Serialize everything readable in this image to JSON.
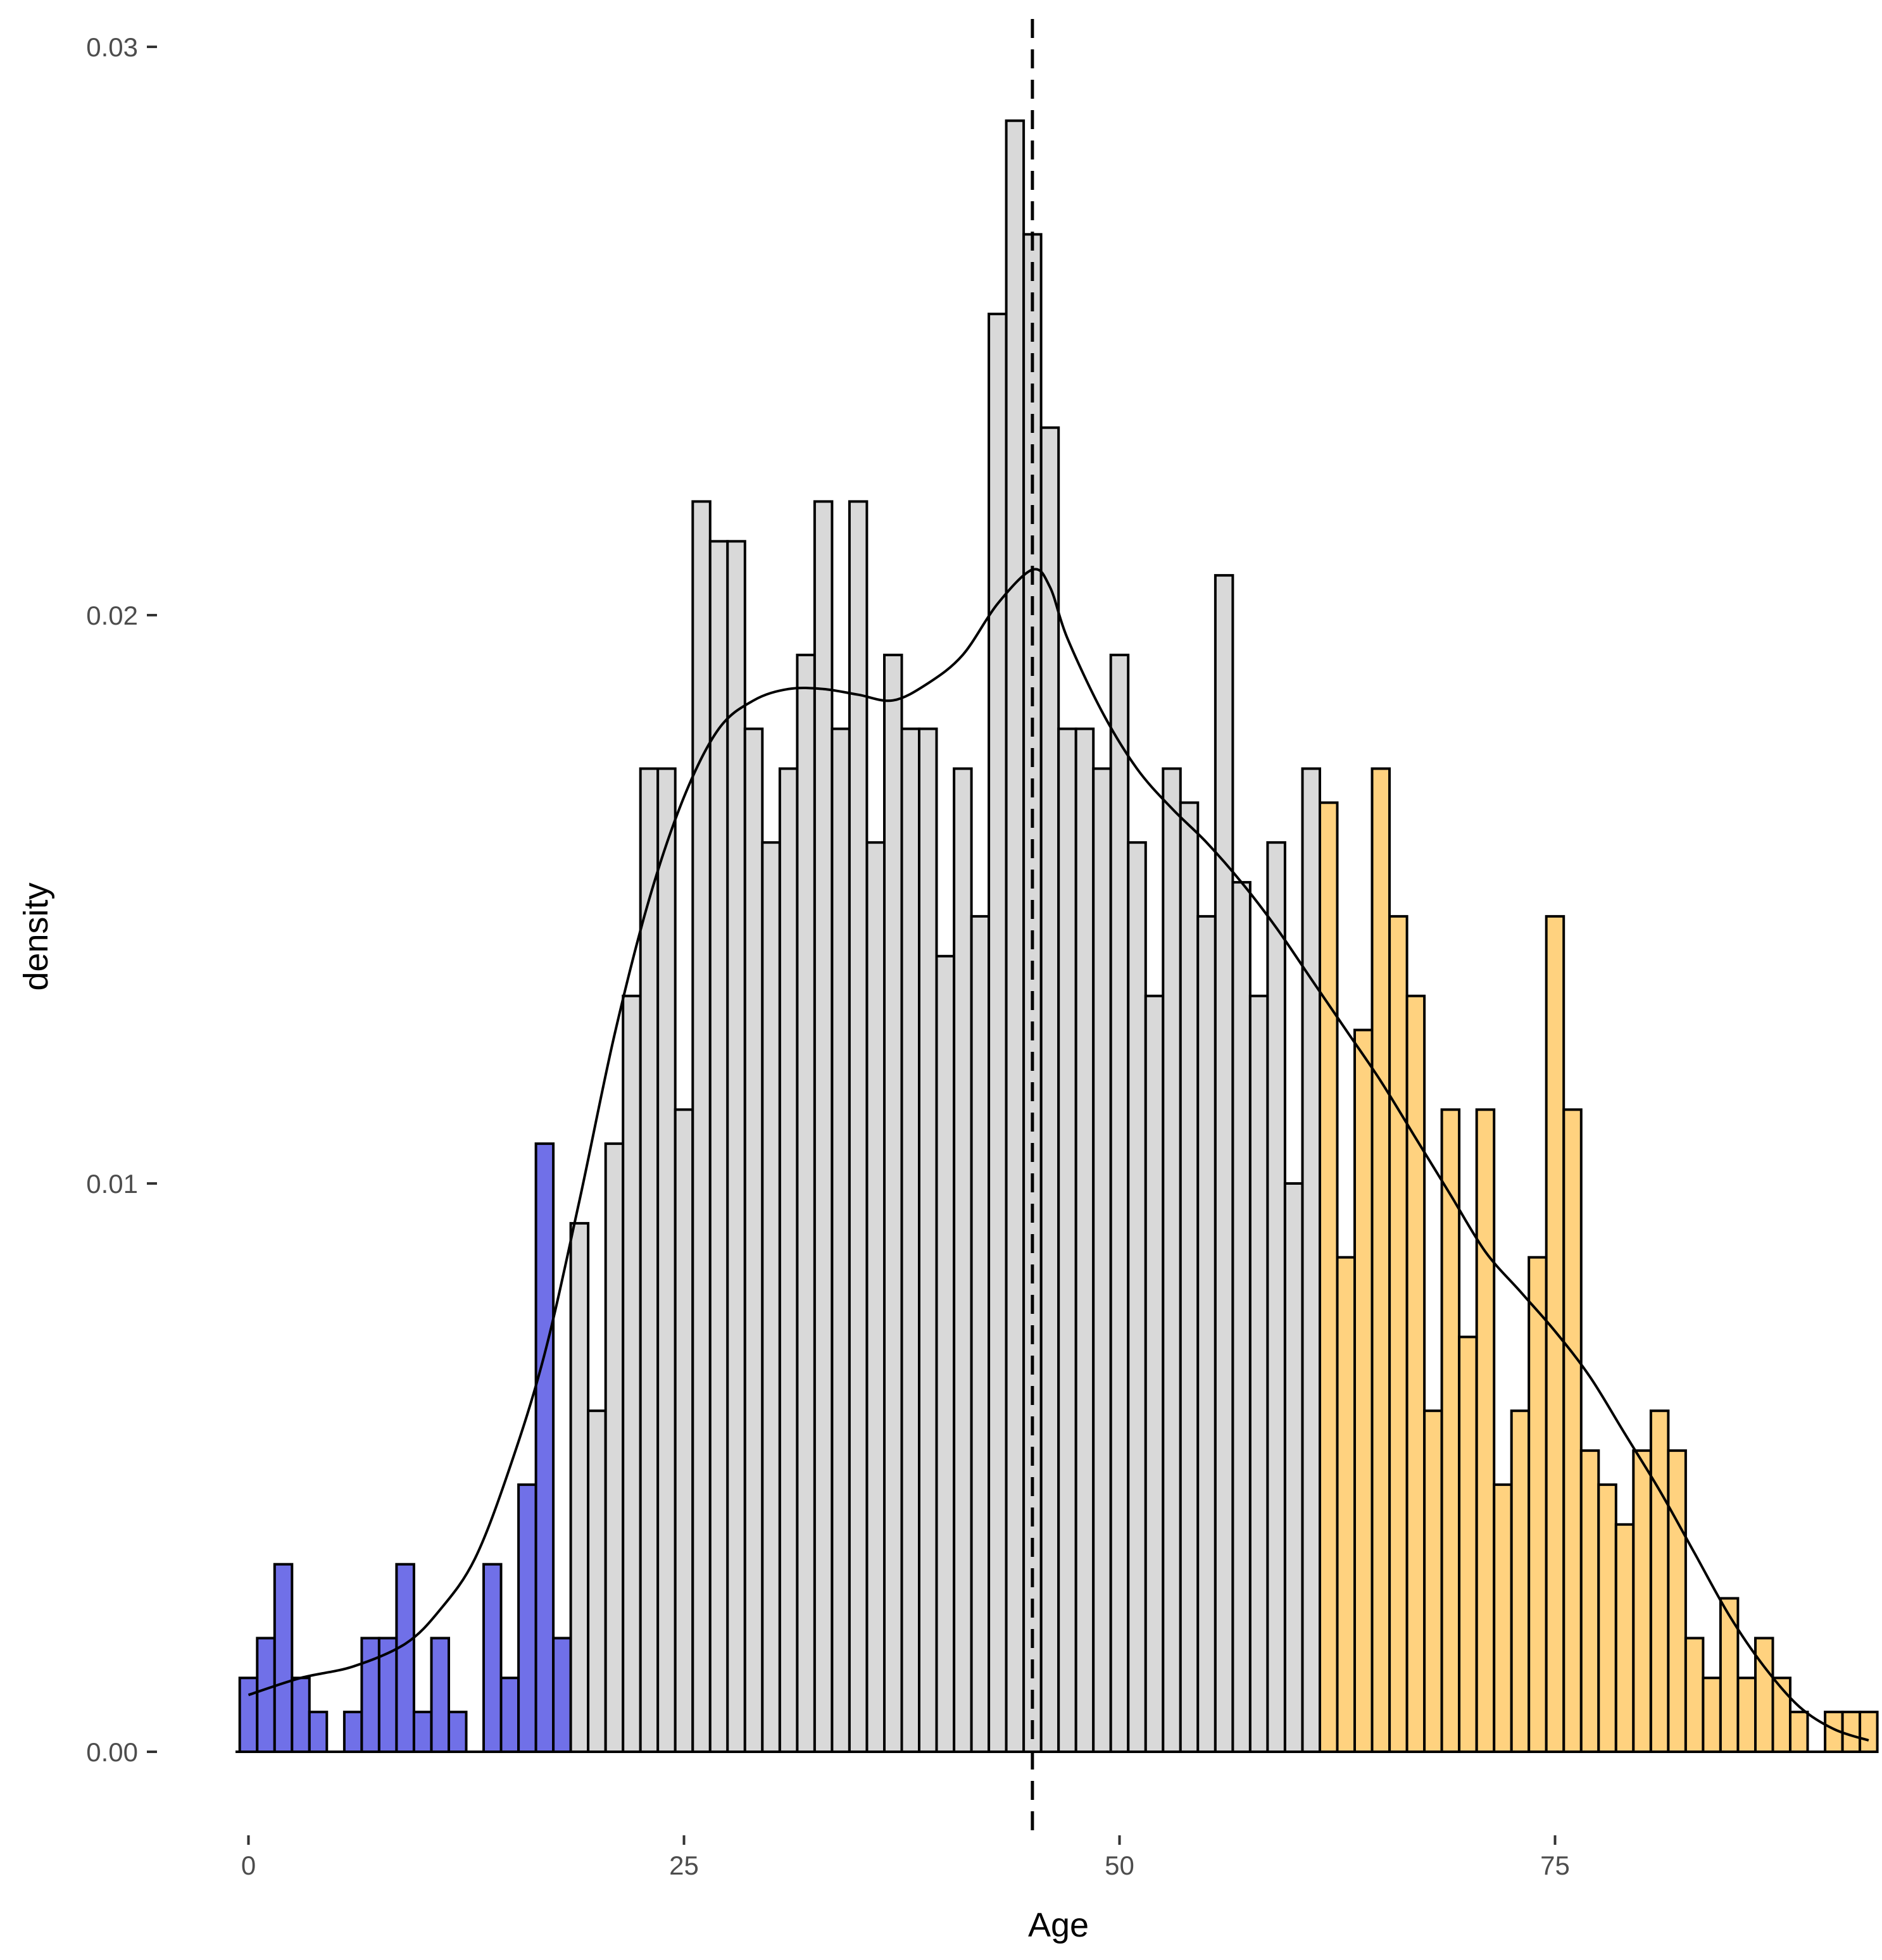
{
  "chart_data": {
    "type": "histogram",
    "title": "",
    "xlabel": "Age",
    "ylabel": "density",
    "xlim": [
      -0.5,
      93.5
    ],
    "ylim": [
      0,
      0.03
    ],
    "x_ticks": [
      0,
      25,
      50,
      75
    ],
    "y_ticks": [
      0.0,
      0.01,
      0.02,
      0.03
    ],
    "x_tick_labels": [
      "0",
      "25",
      "50",
      "75"
    ],
    "y_tick_labels": [
      "0.00",
      "0.01",
      "0.02",
      "0.03"
    ],
    "grid": false,
    "legend": "none",
    "bin_width": 1,
    "bin_centers": [
      0,
      1,
      2,
      3,
      4,
      5,
      6,
      7,
      8,
      9,
      10,
      11,
      12,
      13,
      14,
      15,
      16,
      17,
      18,
      19,
      20,
      21,
      22,
      23,
      24,
      25,
      26,
      27,
      28,
      29,
      30,
      31,
      32,
      33,
      34,
      35,
      36,
      37,
      38,
      39,
      40,
      41,
      42,
      43,
      44,
      45,
      46,
      47,
      48,
      49,
      50,
      51,
      52,
      53,
      54,
      55,
      56,
      57,
      58,
      59,
      60,
      61,
      62,
      63,
      64,
      65,
      66,
      67,
      68,
      69,
      70,
      71,
      72,
      73,
      74,
      75,
      76,
      77,
      78,
      79,
      80,
      81,
      82,
      83,
      84,
      85,
      86,
      87,
      88,
      89,
      90,
      91,
      92,
      93
    ],
    "densities": [
      0.0013,
      0.002,
      0.0033,
      0.0013,
      0.0007,
      0,
      0.0007,
      0.002,
      0.002,
      0.0033,
      0.0007,
      0.002,
      0.0007,
      0,
      0.0033,
      0.0013,
      0.0047,
      0.0107,
      0.002,
      0.0093,
      0.006,
      0.0107,
      0.0133,
      0.0173,
      0.0173,
      0.0113,
      0.022,
      0.0213,
      0.0213,
      0.018,
      0.016,
      0.0173,
      0.0193,
      0.022,
      0.018,
      0.022,
      0.016,
      0.0193,
      0.018,
      0.018,
      0.014,
      0.0173,
      0.0147,
      0.0253,
      0.0287,
      0.0267,
      0.0233,
      0.018,
      0.018,
      0.0173,
      0.0193,
      0.016,
      0.0133,
      0.0173,
      0.0167,
      0.0147,
      0.0207,
      0.0153,
      0.0133,
      0.016,
      0.01,
      0.0173,
      0.0167,
      0.0087,
      0.0127,
      0.0173,
      0.0147,
      0.0133,
      0.006,
      0.0113,
      0.0073,
      0.0113,
      0.0047,
      0.006,
      0.0087,
      0.0147,
      0.0113,
      0.0053,
      0.0047,
      0.004,
      0.0053,
      0.006,
      0.0053,
      0.002,
      0.0013,
      0.0027,
      0.0013,
      0.002,
      0.0013,
      0.0007,
      0,
      0.0007,
      0.0007,
      0.0007
    ],
    "bin_groups": [
      {
        "from": 0,
        "to": 18,
        "color": "#7070E8"
      },
      {
        "from": 19,
        "to": 61,
        "color": "#D9D9D9"
      },
      {
        "from": 62,
        "to": 93,
        "color": "#FFD27F"
      }
    ],
    "density_curve": {
      "x": [
        0,
        3,
        6,
        9,
        11,
        13,
        15,
        17,
        19,
        21,
        23,
        25,
        27,
        29,
        31,
        33,
        35,
        37,
        39,
        41,
        43,
        45,
        46,
        47,
        49,
        51,
        53,
        55,
        57,
        59,
        61,
        63,
        65,
        67,
        69,
        71,
        73,
        75,
        77,
        79,
        81,
        83,
        85,
        87,
        89,
        91,
        93
      ],
      "y": [
        0.001,
        0.0013,
        0.0015,
        0.0019,
        0.0025,
        0.0034,
        0.005,
        0.007,
        0.0097,
        0.0126,
        0.015,
        0.0168,
        0.018,
        0.0185,
        0.0187,
        0.0187,
        0.0186,
        0.0185,
        0.0188,
        0.0193,
        0.0202,
        0.0208,
        0.0205,
        0.0196,
        0.0183,
        0.0173,
        0.0166,
        0.016,
        0.0153,
        0.0145,
        0.0136,
        0.0127,
        0.0118,
        0.0108,
        0.0098,
        0.0088,
        0.0081,
        0.0074,
        0.0066,
        0.0056,
        0.0046,
        0.0035,
        0.0024,
        0.0015,
        0.0008,
        0.0004,
        0.0002
      ]
    },
    "reference_line": {
      "x": 45,
      "style": "dashed",
      "color": "#000000"
    },
    "colors": {
      "outline": "#000000",
      "axis": "#000000",
      "tick_text": "#4d4d4d"
    }
  }
}
